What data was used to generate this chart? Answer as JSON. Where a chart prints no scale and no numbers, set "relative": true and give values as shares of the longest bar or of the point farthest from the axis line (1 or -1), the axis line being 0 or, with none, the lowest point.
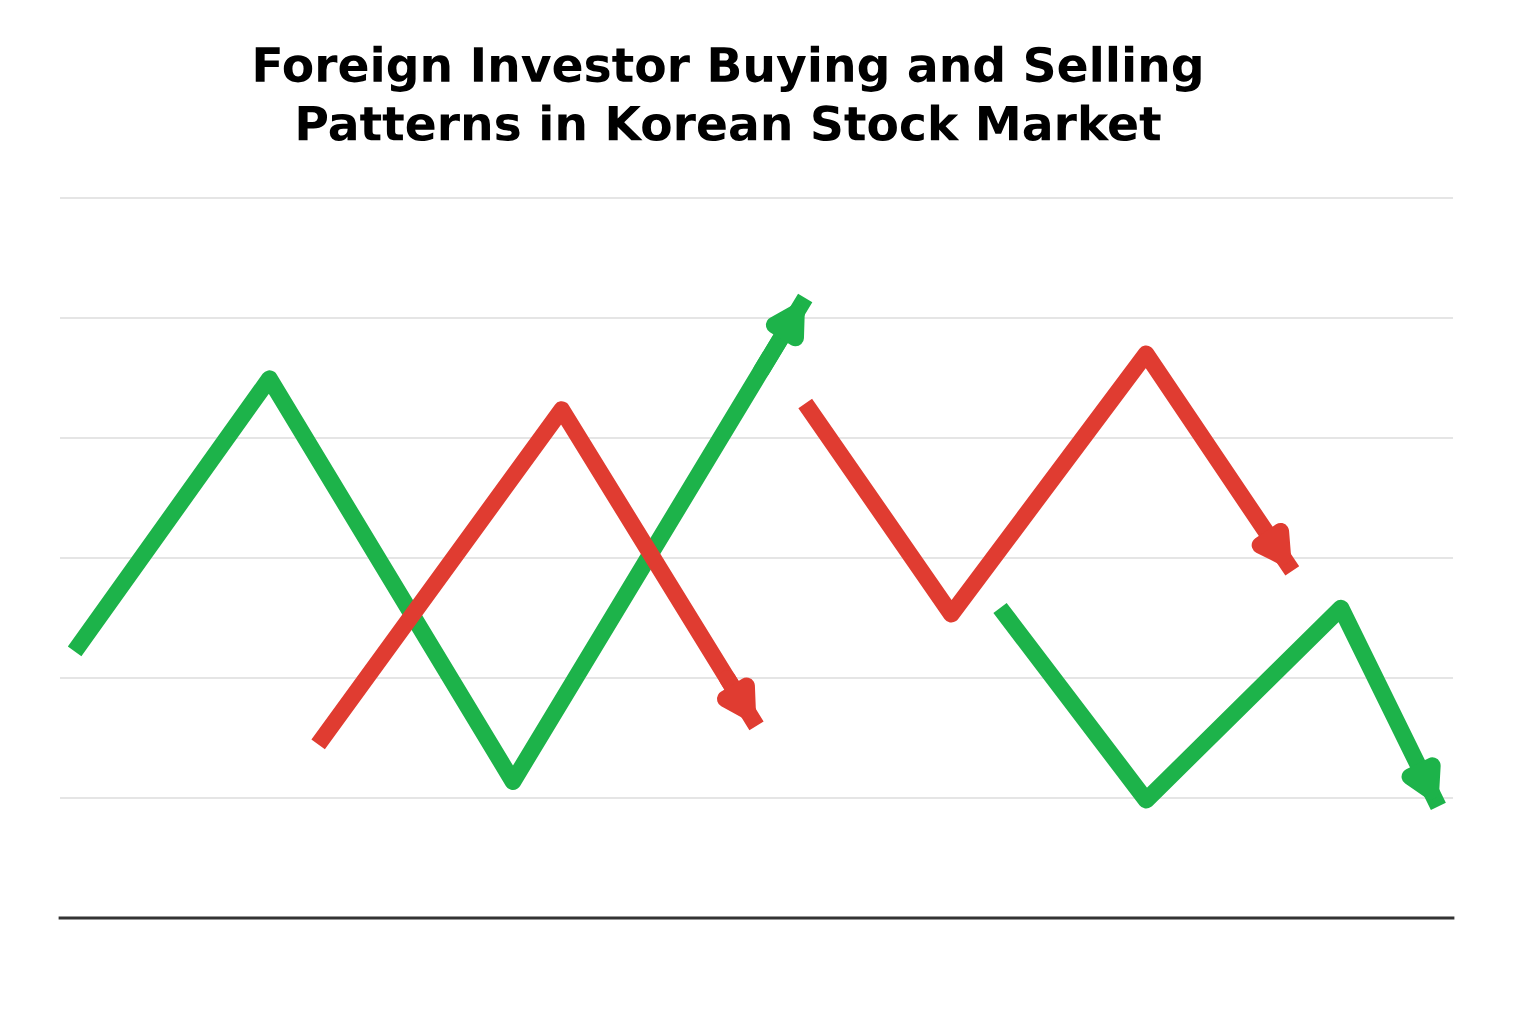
{
  "chart_data": {
    "type": "line",
    "title": "Foreign Investor Buying and Selling\nPatterns in Korean Stock Market",
    "relative": true,
    "grid": "y",
    "tick_labels": false,
    "marker": "none",
    "line_style": "solid",
    "categories": [
      null,
      null,
      null,
      null,
      null,
      null,
      null,
      null,
      null,
      null,
      null,
      null,
      null,
      null,
      null,
      null,
      null,
      null,
      null,
      null,
      null,
      null,
      null,
      null,
      null,
      null,
      null,
      null,
      null
    ],
    "series": [
      {
        "color": "#1db34a",
        "values": [
          0.43,
          null,
          null,
          null,
          0.87,
          null,
          null,
          null,
          null,
          0.22,
          null,
          null,
          null,
          null,
          null,
          1.0,
          null,
          null,
          null,
          null,
          null,
          null,
          null,
          null,
          null,
          null,
          null,
          null,
          null
        ]
      },
      {
        "color": "#e03c31",
        "values": [
          null,
          null,
          null,
          null,
          null,
          0.28,
          null,
          null,
          null,
          null,
          0.82,
          null,
          null,
          null,
          0.31,
          null,
          null,
          null,
          null,
          null,
          null,
          null,
          null,
          null,
          null,
          null,
          null,
          null,
          null
        ]
      },
      {
        "color": "#e03c31",
        "values": [
          null,
          null,
          null,
          null,
          null,
          null,
          null,
          null,
          null,
          null,
          null,
          null,
          null,
          null,
          null,
          0.83,
          null,
          null,
          0.49,
          null,
          null,
          null,
          0.91,
          null,
          null,
          0.56,
          null,
          null,
          null
        ]
      },
      {
        "color": "#1db34a",
        "values": [
          null,
          null,
          null,
          null,
          null,
          null,
          null,
          null,
          null,
          null,
          null,
          null,
          null,
          null,
          null,
          null,
          null,
          null,
          null,
          0.5,
          null,
          null,
          0.19,
          null,
          null,
          null,
          0.5,
          null,
          0.18
        ]
      }
    ]
  }
}
